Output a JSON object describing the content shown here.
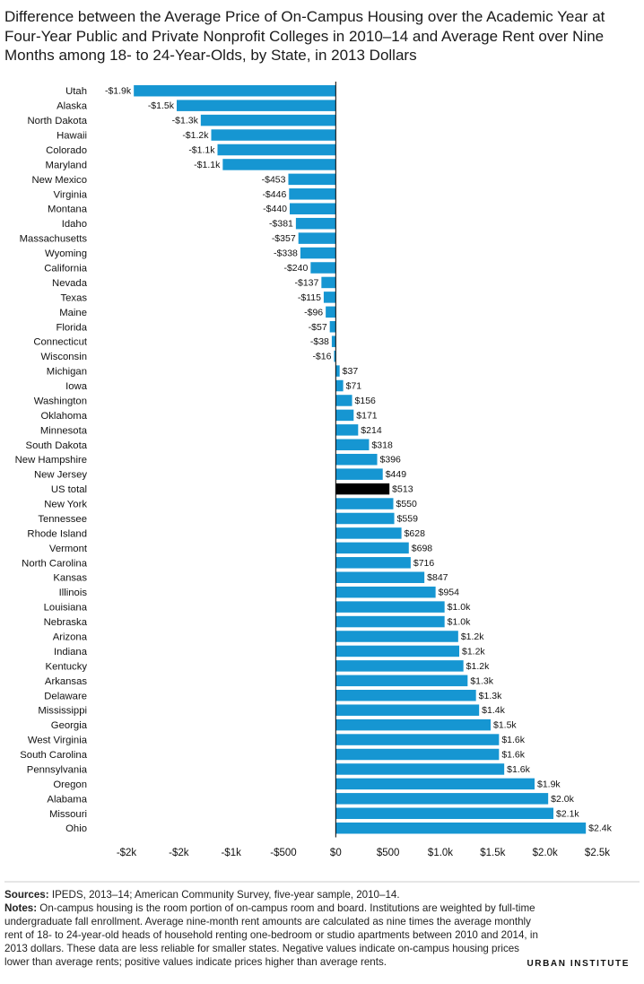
{
  "title": "Difference between the Average Price of On-Campus Housing over the Academic Year at Four-Year Public and Private Nonprofit Colleges in 2010–14 and Average Rent over Nine Months among 18- to 24-Year-Olds, by State, in 2013 Dollars",
  "colors": {
    "bar": "#1696d2",
    "highlight": "#000000",
    "axis": "#000000"
  },
  "chart_data": {
    "type": "bar",
    "orientation": "horizontal",
    "highlight": "US total",
    "xlim": [
      -2000,
      2500
    ],
    "xticks": [
      -2000,
      -1500,
      -1000,
      -500,
      0,
      500,
      1000,
      1500,
      2000,
      2500
    ],
    "xtick_labels": [
      "-$2k",
      "-$2k",
      "-$1k",
      "-$500",
      "$0",
      "$500",
      "$1.0k",
      "$1.5k",
      "$2.0k",
      "$2.5k"
    ],
    "categories": [
      "Utah",
      "Alaska",
      "North Dakota",
      "Hawaii",
      "Colorado",
      "Maryland",
      "New Mexico",
      "Virginia",
      "Montana",
      "Idaho",
      "Massachusetts",
      "Wyoming",
      "California",
      "Nevada",
      "Texas",
      "Maine",
      "Florida",
      "Connecticut",
      "Wisconsin",
      "Michigan",
      "Iowa",
      "Washington",
      "Oklahoma",
      "Minnesota",
      "South Dakota",
      "New Hampshire",
      "New Jersey",
      "US total",
      "New York",
      "Tennessee",
      "Rhode Island",
      "Vermont",
      "North Carolina",
      "Kansas",
      "Illinois",
      "Louisiana",
      "Nebraska",
      "Arizona",
      "Indiana",
      "Kentucky",
      "Arkansas",
      "Delaware",
      "Mississippi",
      "Georgia",
      "West Virginia",
      "South Carolina",
      "Pennsylvania",
      "Oregon",
      "Alabama",
      "Missouri",
      "Ohio"
    ],
    "values": [
      -1930,
      -1520,
      -1290,
      -1190,
      -1130,
      -1080,
      -453,
      -446,
      -440,
      -381,
      -357,
      -338,
      -240,
      -137,
      -115,
      -96,
      -57,
      -38,
      -16,
      37,
      71,
      156,
      171,
      214,
      318,
      396,
      449,
      513,
      550,
      559,
      628,
      698,
      716,
      847,
      954,
      1040,
      1040,
      1170,
      1180,
      1220,
      1260,
      1340,
      1370,
      1480,
      1560,
      1560,
      1610,
      1900,
      2030,
      2080,
      2390
    ],
    "value_labels": [
      "-$1.9k",
      "-$1.5k",
      "-$1.3k",
      "-$1.2k",
      "-$1.1k",
      "-$1.1k",
      "-$453",
      "-$446",
      "-$440",
      "-$381",
      "-$357",
      "-$338",
      "-$240",
      "-$137",
      "-$115",
      "-$96",
      "-$57",
      "-$38",
      "-$16",
      "$37",
      "$71",
      "$156",
      "$171",
      "$214",
      "$318",
      "$396",
      "$449",
      "$513",
      "$550",
      "$559",
      "$628",
      "$698",
      "$716",
      "$847",
      "$954",
      "$1.0k",
      "$1.0k",
      "$1.2k",
      "$1.2k",
      "$1.2k",
      "$1.3k",
      "$1.3k",
      "$1.4k",
      "$1.5k",
      "$1.6k",
      "$1.6k",
      "$1.6k",
      "$1.9k",
      "$2.0k",
      "$2.1k",
      "$2.4k"
    ]
  },
  "notes": {
    "sources_label": "Sources:",
    "sources_text": " IPEDS, 2013–14; American Community Survey, five-year sample, 2010–14.",
    "notes_label": "Notes:",
    "notes_text": " On-campus housing is the room portion of on-campus room and board. Institutions are weighted by full-time undergraduate fall enrollment. Average nine-month rent amounts are calculated as nine times the average monthly rent of 18- to 24-year-old heads of household renting one-bedroom or studio apartments between 2010 and 2014, in 2013 dollars. These data are less reliable for smaller states. Negative values indicate on-campus housing prices lower than average rents; positive values indicate prices higher than average rents."
  },
  "brand": "URBAN INSTITUTE"
}
